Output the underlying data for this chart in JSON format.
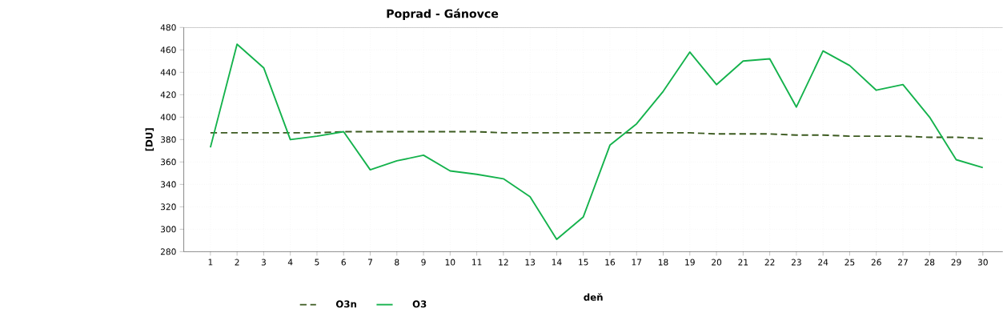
{
  "chart_data": {
    "type": "line",
    "title": "Poprad - Gánovce",
    "xlabel": "deň",
    "ylabel": "[DU]",
    "categories": [
      "1",
      "2",
      "3",
      "4",
      "5",
      "6",
      "7",
      "8",
      "9",
      "10",
      "11",
      "12",
      "13",
      "14",
      "15",
      "16",
      "17",
      "18",
      "19",
      "20",
      "21",
      "22",
      "23",
      "24",
      "25",
      "26",
      "27",
      "28",
      "29",
      "30"
    ],
    "series": [
      {
        "name": "O3n",
        "color": "#3b5a1f",
        "line_style": "dashed",
        "values": [
          386,
          386,
          386,
          386,
          386,
          387,
          387,
          387,
          387,
          387,
          387,
          386,
          386,
          386,
          386,
          386,
          386,
          386,
          386,
          385,
          385,
          385,
          384,
          384,
          383,
          383,
          383,
          382,
          382,
          381
        ]
      },
      {
        "name": "O3",
        "color": "#14b24c",
        "line_style": "solid",
        "values": [
          373,
          465,
          444,
          380,
          383,
          387,
          353,
          361,
          366,
          352,
          349,
          345,
          329,
          291,
          311,
          375,
          394,
          423,
          458,
          429,
          450,
          452,
          409,
          459,
          446,
          424,
          429,
          400,
          362,
          355
        ]
      }
    ],
    "ylim": [
      280,
      480
    ],
    "yticks": [
      280,
      300,
      320,
      340,
      360,
      380,
      400,
      420,
      440,
      460,
      480
    ],
    "grid": true,
    "legend": "bottom left",
    "marker": "none"
  }
}
